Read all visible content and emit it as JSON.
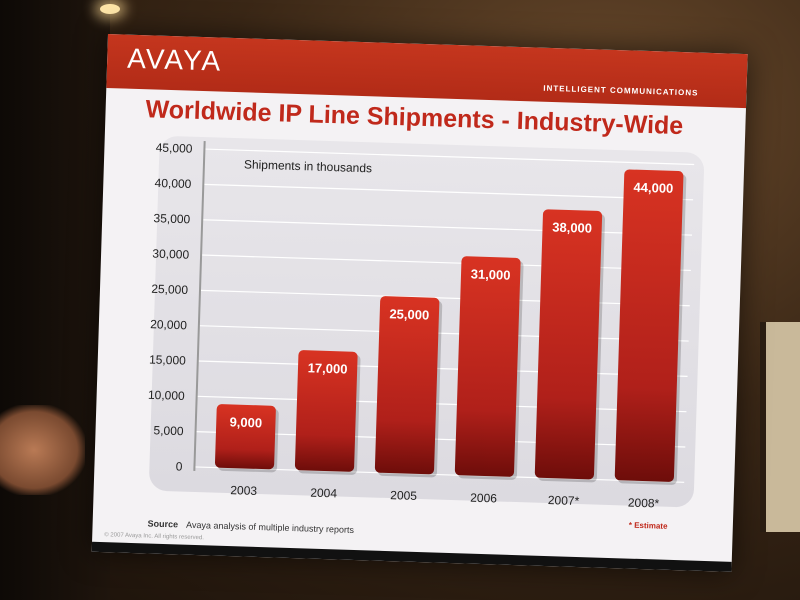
{
  "slide": {
    "logo": "AVAYA",
    "tagline": "INTELLIGENT COMMUNICATIONS",
    "title": "Worldwide IP Line Shipments - Industry-Wide",
    "source_label": "Source",
    "source_text": "Avaya analysis of multiple industry reports",
    "footnote": "* Estimate",
    "copyright": "© 2007 Avaya Inc. All rights reserved."
  },
  "chart_data": {
    "type": "bar",
    "title": "Worldwide IP Line Shipments - Industry-Wide",
    "annotation": "Shipments in thousands",
    "categories": [
      "2003",
      "2004",
      "2005",
      "2006",
      "2007*",
      "2008*"
    ],
    "values": [
      9000,
      17000,
      25000,
      31000,
      38000,
      44000
    ],
    "value_labels": [
      "9,000",
      "17,000",
      "25,000",
      "31,000",
      "38,000",
      "44,000"
    ],
    "ylim": [
      0,
      45000
    ],
    "y_ticks": [
      0,
      5000,
      10000,
      15000,
      20000,
      25000,
      30000,
      35000,
      40000,
      45000
    ],
    "y_tick_labels": [
      "0",
      "5,000",
      "10,000",
      "15,000",
      "20,000",
      "25,000",
      "30,000",
      "35,000",
      "40,000",
      "45,000"
    ],
    "grid": true,
    "bar_color": "#c4241b",
    "bar_color_dark": "#6e0d0a"
  }
}
